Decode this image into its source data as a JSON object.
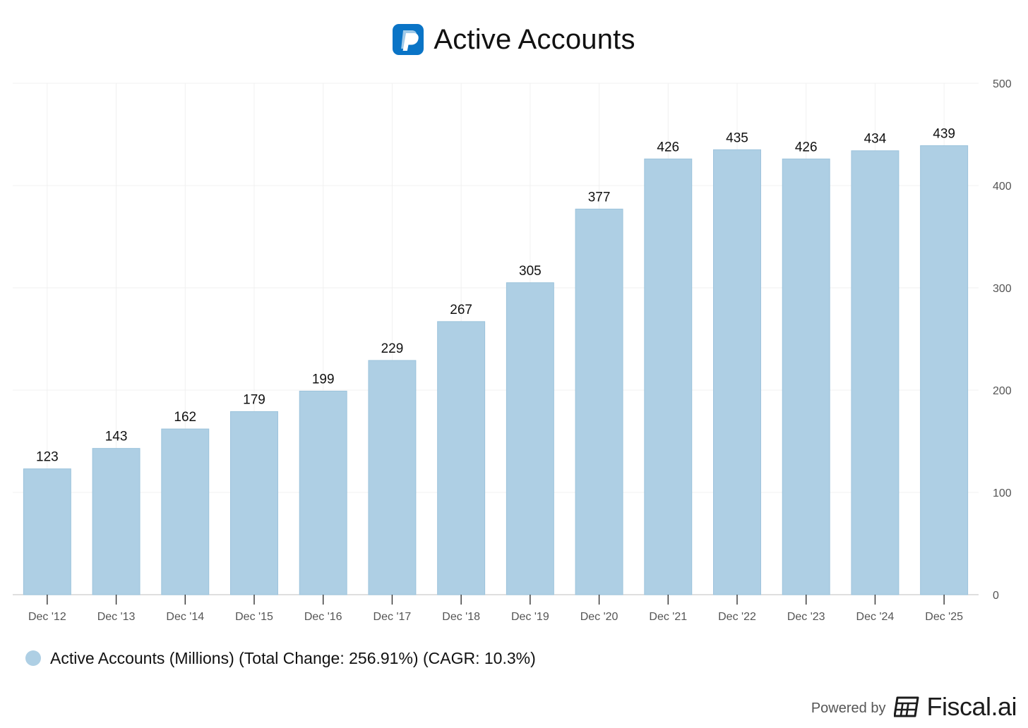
{
  "title": "Active Accounts",
  "logo_icon": "paypal-logo-icon",
  "legend": {
    "label": "Active Accounts (Millions) (Total Change: 256.91%) (CAGR: 10.3%)",
    "color": "#aecfe4"
  },
  "footer": {
    "powered_by": "Powered by",
    "brand": "Fiscal.ai",
    "brand_icon": "fiscal-ai-logo-icon"
  },
  "colors": {
    "bar": "#aecfe4",
    "bar_edge": "#9cc3dc",
    "grid": "#f0f0f0",
    "axis": "#cccccc",
    "tick_text": "#555555",
    "label_text": "#111111",
    "brand_blue": "#0a74c6"
  },
  "chart_data": {
    "type": "bar",
    "categories": [
      "Dec '12",
      "Dec '13",
      "Dec '14",
      "Dec '15",
      "Dec '16",
      "Dec '17",
      "Dec '18",
      "Dec '19",
      "Dec '20",
      "Dec '21",
      "Dec '22",
      "Dec '23",
      "Dec '24",
      "Dec '25"
    ],
    "series": [
      {
        "name": "Active Accounts (Millions)",
        "values": [
          123,
          143,
          162,
          179,
          199,
          229,
          267,
          305,
          377,
          426,
          435,
          426,
          434,
          439
        ]
      }
    ],
    "data_labels": [
      "123",
      "143",
      "162",
      "179",
      "199",
      "229",
      "267",
      "305",
      "377",
      "426",
      "435",
      "426",
      "434",
      "439"
    ],
    "y_axis": {
      "position": "right",
      "range": [
        0,
        500
      ],
      "ticks": [
        0,
        100,
        200,
        300,
        400,
        500
      ]
    },
    "grid": true,
    "legend_position": "bottom-left"
  }
}
